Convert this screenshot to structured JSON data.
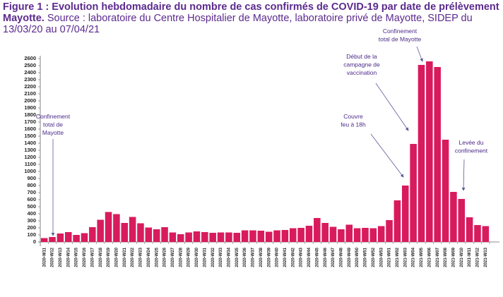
{
  "chart_data": {
    "type": "bar",
    "title": "Figure 1 : Evolution hebdomadaire du nombre de cas confirmés de COVID-19 par date de prélèvement Mayotte.",
    "subtitle": "Source : laboratoire du Centre Hospitalier de Mayotte, laboratoire privé de Mayotte, SIDEP du 13/03/20 au 07/04/21",
    "categories": [
      "2020-W11",
      "2020-W12",
      "2020-W13",
      "2020-W14",
      "2020-W15",
      "2020-W16",
      "2020-W17",
      "2020-W18",
      "2020-W19",
      "2020-W20",
      "2020-W21",
      "2020-W22",
      "2020-W23",
      "2020-W24",
      "2020-W25",
      "2020-W26",
      "2020-W27",
      "2020-W28",
      "2020-W29",
      "2020-W30",
      "2020-W31",
      "2020-W32",
      "2020-W33",
      "2020-W34",
      "2020-W35",
      "2020-W36",
      "2020-W37",
      "2020-W38",
      "2020-W39",
      "2020-W40",
      "2020-W41",
      "2020-W42",
      "2020-W43",
      "2020-W44",
      "2020-W45",
      "2020-W46",
      "2020-W47",
      "2020-W48",
      "2020-W49",
      "2020-W50",
      "2020-W51",
      "2020-W52",
      "2020-W53",
      "2021-W01",
      "2021-W02",
      "2021-W03",
      "2021-W04",
      "2021-W05",
      "2021-W06",
      "2021-W07",
      "2021-W08",
      "2021-W09",
      "2021-W10",
      "2021-W11",
      "2021-W12",
      "2021-W13"
    ],
    "values": [
      55,
      70,
      120,
      140,
      100,
      125,
      210,
      315,
      425,
      395,
      270,
      355,
      265,
      205,
      180,
      210,
      135,
      110,
      135,
      150,
      140,
      130,
      135,
      135,
      130,
      165,
      165,
      160,
      145,
      165,
      170,
      195,
      200,
      230,
      340,
      270,
      215,
      180,
      245,
      195,
      200,
      195,
      225,
      310,
      590,
      800,
      1390,
      2510,
      2560,
      2480,
      1450,
      710,
      610,
      350,
      240,
      225
    ],
    "color": "#d81b5c",
    "ylim": [
      0,
      2600
    ],
    "yticks": [
      0,
      100,
      200,
      300,
      400,
      500,
      600,
      700,
      800,
      900,
      1000,
      1100,
      1200,
      1300,
      1400,
      1500,
      1600,
      1700,
      1800,
      1900,
      2000,
      2100,
      2200,
      2300,
      2400,
      2500,
      2600
    ],
    "annotations": [
      {
        "lines": [
          "Confinement",
          "total de",
          "Mayotte"
        ]
      },
      {
        "lines": [
          "Couvre",
          "feu à 18h"
        ]
      },
      {
        "lines": [
          "Début de la",
          "campagne de",
          "vaccination"
        ]
      },
      {
        "lines": [
          "Confinement",
          "total de Mayotte"
        ]
      },
      {
        "lines": [
          "Levée du",
          "confinement"
        ]
      }
    ]
  }
}
